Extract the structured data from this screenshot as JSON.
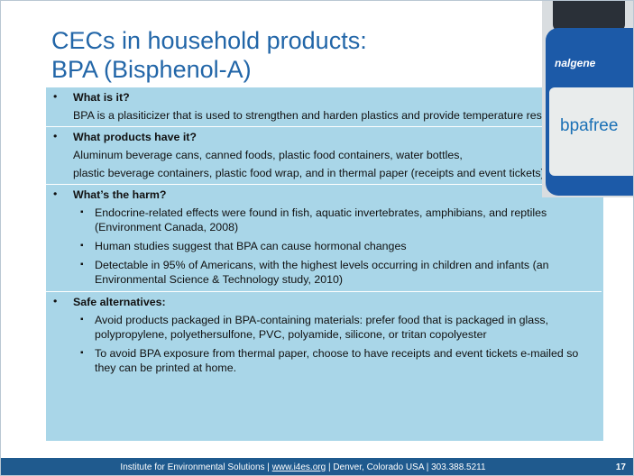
{
  "header": {
    "title_line1": "CECs in household products:",
    "title_line2": "BPA (Bisphenol-A)"
  },
  "sections": [
    {
      "heading": "What is it?",
      "paragraphs": [
        "BPA  is a plasiticizer that is used to strengthen and harden plastics and provide temperature resistance"
      ]
    },
    {
      "heading": "What products have it?",
      "paragraphs": [
        "Aluminum beverage cans, canned foods, plastic food containers, water bottles,",
        "plastic beverage containers, plastic food wrap, and in thermal paper (receipts and event tickets)"
      ]
    },
    {
      "heading": "What’s the harm?",
      "items": [
        "Endocrine-related effects were found in fish, aquatic invertebrates, amphibians, and reptiles (Environment Canada, 2008)",
        "Human studies suggest that BPA can cause hormonal changes",
        "Detectable in 95% of Americans, with the highest levels occurring in children and infants (an Environmental Science & Technology study, 2010)"
      ]
    },
    {
      "heading": "Safe alternatives:",
      "items": [
        "Avoid products packaged in BPA-containing materials: prefer food that is packaged in glass, polypropylene, polyethersulfone, PVC, polyamide, silicone, or tritan copolyester",
        "To avoid BPA exposure from thermal paper, choose to have receipts and event tickets e-mailed so they can be printed at home."
      ]
    }
  ],
  "photo": {
    "brand": "nalgene",
    "label": "bpafree"
  },
  "footer": {
    "organization": "Institute for Environmental Solutions",
    "separator": "|",
    "url": "www.i4es.org",
    "location": "Denver, Colorado USA",
    "phone": "303.388.5211",
    "page": "17"
  }
}
